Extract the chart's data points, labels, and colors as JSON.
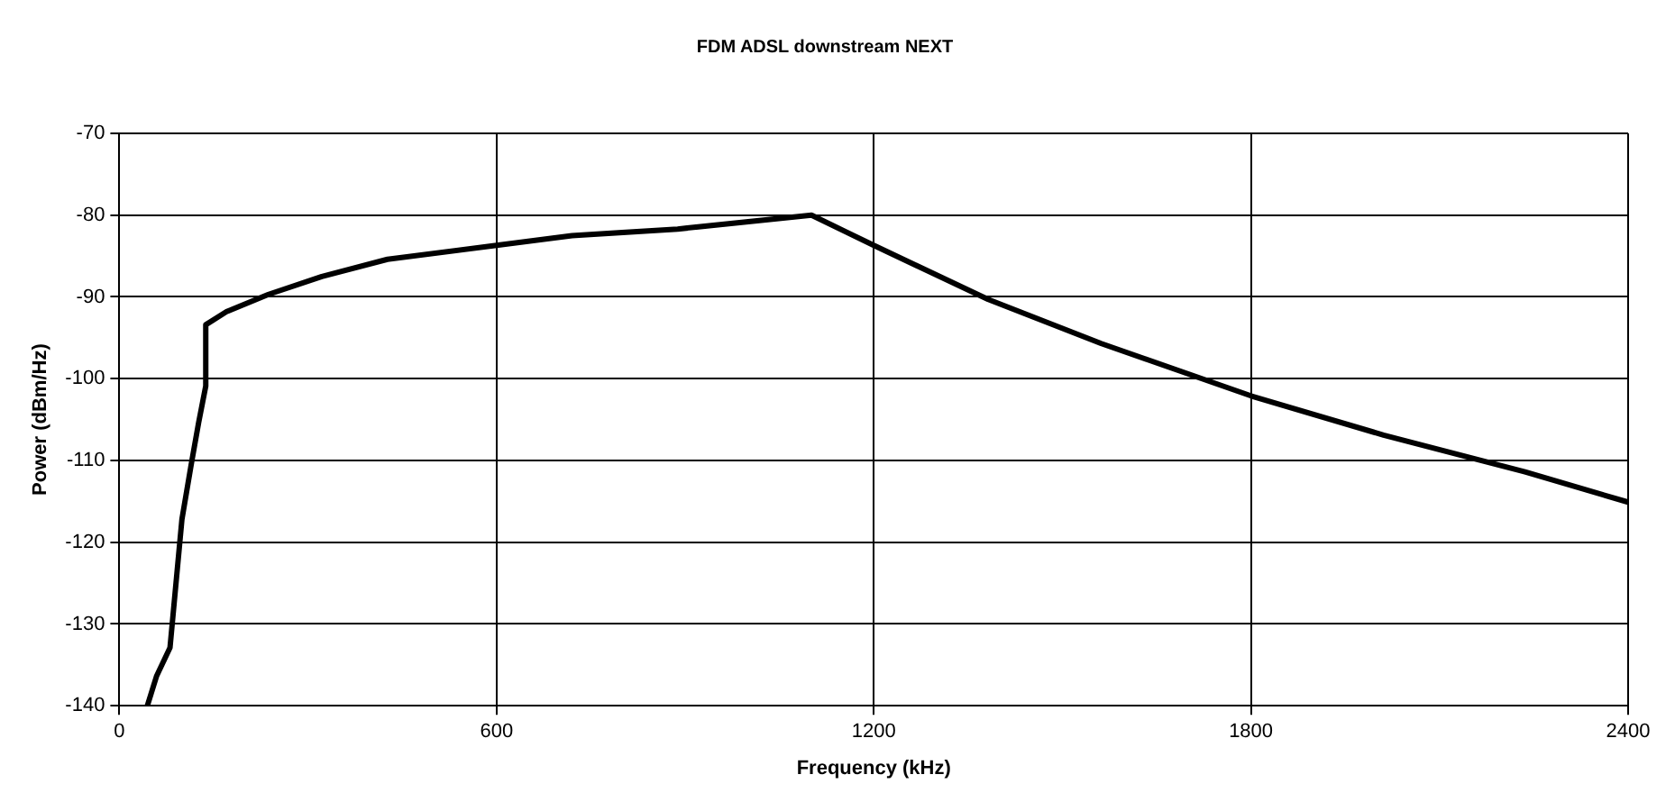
{
  "chart_data": {
    "type": "line",
    "title": "FDM ADSL downstream NEXT",
    "xlabel": "Frequency (kHz)",
    "ylabel": "Power (dBm/Hz)",
    "x": [
      44.5,
      59,
      80.5,
      99.5,
      114,
      126,
      137.4,
      137.4,
      170.6,
      237,
      322,
      426.5,
      600,
      720,
      888,
      1101,
      1200,
      1382,
      1562,
      1800,
      2011,
      2236,
      2400
    ],
    "series": [
      {
        "color": "#000000",
        "values": [
          -140,
          -136.4,
          -132.9,
          -117.2,
          -110.6,
          -105.4,
          -100.9,
          -93.4,
          -91.8,
          -89.7,
          -87.5,
          -85.4,
          -83.7,
          -82.5,
          -81.7,
          -80,
          -83.7,
          -90.3,
          -95.7,
          -102.1,
          -106.9,
          -111.4,
          -115.1
        ]
      }
    ],
    "xlim": [
      0,
      2400
    ],
    "xticks": [
      0,
      600,
      1200,
      1800,
      2400
    ],
    "ylim": [
      -140,
      -70
    ],
    "yticks": [
      -140,
      -130,
      -120,
      -110,
      -100,
      -90,
      -80,
      -70
    ],
    "grid": true,
    "legend": false,
    "marker": "none",
    "line_style": "solid"
  }
}
